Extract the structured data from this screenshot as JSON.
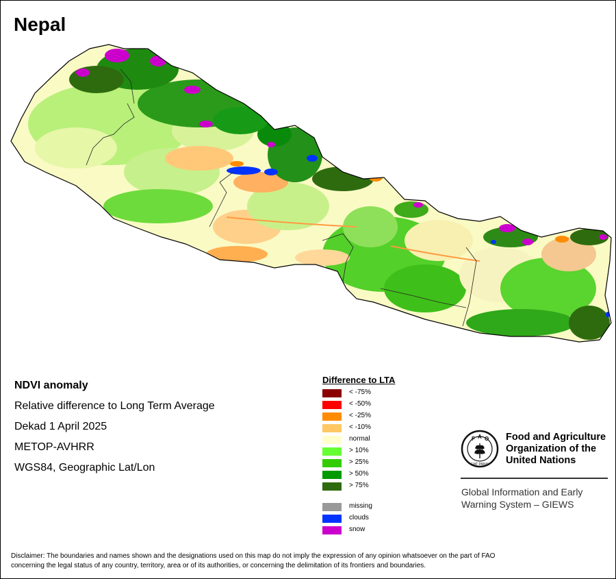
{
  "map": {
    "title": "Nepal"
  },
  "info": {
    "lines": [
      "NDVI anomaly",
      "Relative difference to Long Term Average",
      "Dekad 1 April 2025",
      "METOP-AVHRR",
      "WGS84, Geographic Lat/Lon"
    ]
  },
  "legend": {
    "title": "Difference to LTA",
    "classes": [
      {
        "label": "< -75%",
        "color": "#8B0000"
      },
      {
        "label": "< -50%",
        "color": "#FF0000"
      },
      {
        "label": "< -25%",
        "color": "#FF8C00"
      },
      {
        "label": "< -10%",
        "color": "#FFC864"
      },
      {
        "label": "normal",
        "color": "#FFFFCC"
      },
      {
        "label": "> 10%",
        "color": "#66FF33"
      },
      {
        "label": "> 25%",
        "color": "#33CC00"
      },
      {
        "label": "> 50%",
        "color": "#009900"
      },
      {
        "label": "> 75%",
        "color": "#2E6B0F"
      }
    ],
    "special": [
      {
        "label": "missing",
        "color": "#999999"
      },
      {
        "label": "clouds",
        "color": "#0033FF"
      },
      {
        "label": "snow",
        "color": "#CC00CC"
      }
    ]
  },
  "org": {
    "name_lines": [
      "Food and Agriculture",
      "Organization of the",
      "United Nations"
    ],
    "logo_letters": [
      "F",
      "A",
      "O"
    ],
    "logo_motto": "FIAT PANIS",
    "system_lines": [
      "Global Information and Early",
      "Warning System – GIEWS"
    ]
  },
  "disclaimer": {
    "lines": [
      "Disclaimer: The boundaries and names shown and the designations used on this map do not imply the expression of any opinion whatsoever on the part of FAO",
      "concerning the legal status of any country, territory, area or of its authorities, or concerning the delimitation of its frontiers and boundaries."
    ]
  }
}
